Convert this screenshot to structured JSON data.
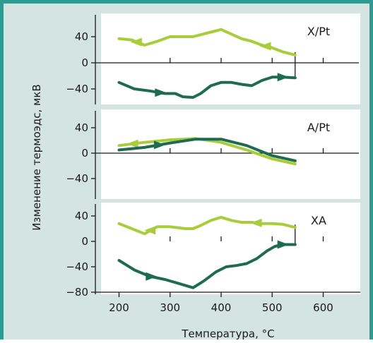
{
  "chart_data": {
    "type": "line",
    "xlabel": "Температура, °C",
    "ylabel": "Изменение термоэдс, мкВ",
    "xlim": [
      150,
      670
    ],
    "x_ticks": [
      200,
      300,
      400,
      500,
      600
    ],
    "colors": {
      "heating": "#1e6b4f",
      "cooling": "#a9cc3a"
    },
    "panels": [
      {
        "label": "X/Pt",
        "ylim": [
          -55,
          60
        ],
        "y_ticks": [
          40,
          0,
          -40
        ],
        "drop_x": 545,
        "series": [
          {
            "role": "cooling",
            "x": [
              200,
              225,
              250,
              275,
              300,
              325,
              345,
              360,
              380,
              400,
              420,
              440,
              460,
              480,
              500,
              520,
              545
            ],
            "y": [
              37,
              35,
              27,
              33,
              40,
              40,
              40,
              43,
              47,
              51,
              44,
              37,
              33,
              27,
              23,
              17,
              12
            ],
            "arrows": [
              {
                "x": 235,
                "dir": "left"
              },
              {
                "x": 488,
                "dir": "left"
              }
            ]
          },
          {
            "role": "heating",
            "x": [
              200,
              230,
              260,
              290,
              310,
              325,
              345,
              360,
              380,
              400,
              420,
              440,
              460,
              480,
              500,
              520,
              545
            ],
            "y": [
              -30,
              -40,
              -43,
              -47,
              -47,
              -52,
              -53,
              -47,
              -35,
              -30,
              -30,
              -33,
              -35,
              -27,
              -22,
              -22,
              -23
            ],
            "arrows": [
              {
                "x": 280,
                "dir": "right"
              },
              {
                "x": 520,
                "dir": "right"
              }
            ]
          }
        ]
      },
      {
        "label": "A/Pt",
        "ylim": [
          -55,
          45
        ],
        "y_ticks": [
          40,
          0,
          -40
        ],
        "series": [
          {
            "role": "cooling",
            "x": [
              200,
              250,
              300,
              350,
              400,
              450,
              500,
              545
            ],
            "y": [
              12,
              17,
              21,
              23,
              17,
              5,
              -9,
              -17
            ],
            "arrows": [
              {
                "x": 228,
                "dir": "left"
              }
            ]
          },
          {
            "role": "heating",
            "x": [
              200,
              250,
              300,
              350,
              400,
              450,
              500,
              545
            ],
            "y": [
              5,
              9,
              16,
              22,
              22,
              12,
              -4,
              -12
            ],
            "arrows": [
              {
                "x": 278,
                "dir": "right"
              }
            ]
          }
        ]
      },
      {
        "label": "XA",
        "ylim": [
          -78,
          50
        ],
        "y_ticks": [
          40,
          0,
          -40,
          -80
        ],
        "drop_x": 545,
        "series": [
          {
            "role": "cooling",
            "x": [
              200,
              225,
              250,
              275,
              300,
              330,
              345,
              360,
              380,
              400,
              420,
              440,
              460,
              480,
              500,
              520,
              545
            ],
            "y": [
              28,
              20,
              12,
              23,
              23,
              20,
              20,
              25,
              33,
              38,
              33,
              30,
              30,
              28,
              28,
              27,
              22
            ],
            "arrows": [
              {
                "x": 262,
                "dir": "left"
              },
              {
                "x": 470,
                "dir": "left"
              }
            ]
          },
          {
            "role": "heating",
            "x": [
              200,
              230,
              260,
              290,
              320,
              345,
              365,
              390,
              410,
              430,
              450,
              470,
              490,
              505,
              520,
              545
            ],
            "y": [
              -30,
              -45,
              -55,
              -60,
              -67,
              -73,
              -63,
              -48,
              -40,
              -38,
              -35,
              -27,
              -15,
              -8,
              -5,
              -5
            ],
            "arrows": [
              {
                "x": 262,
                "dir": "right"
              },
              {
                "x": 520,
                "dir": "right"
              }
            ]
          }
        ]
      }
    ]
  }
}
